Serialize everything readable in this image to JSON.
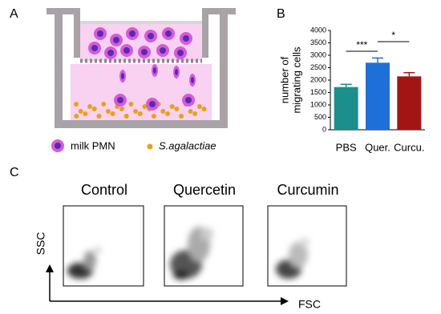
{
  "panel_labels": [
    "A",
    "B",
    "C"
  ],
  "legend": [
    "milk PMN",
    "S.agalactiae"
  ],
  "flow": {
    "titles": [
      "Control",
      "Quercetin",
      "Curcumin"
    ],
    "x_label": "FSC",
    "y_label": "SSC"
  },
  "chart_data": {
    "type": "bar",
    "y_label": [
      "number of",
      "migrating cells"
    ],
    "categories": [
      "PBS",
      "Quer.",
      "Curcu."
    ],
    "values": [
      1720,
      2700,
      2150
    ],
    "errors": [
      110,
      190,
      150
    ],
    "colors": [
      "#1a8f8c",
      "#1f6fd8",
      "#a31515"
    ],
    "annotations": [
      "***",
      "*"
    ],
    "ylim": [
      0,
      4000
    ],
    "yticks": [
      0,
      500,
      1000,
      1500,
      2000,
      2500,
      3000,
      3500,
      4000
    ]
  }
}
